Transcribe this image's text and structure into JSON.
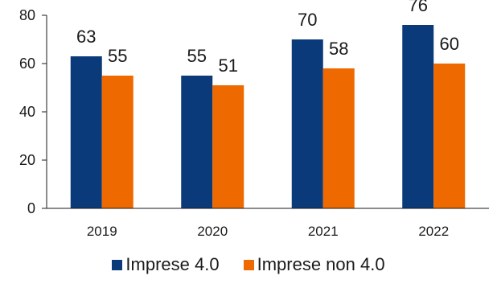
{
  "chart_data": {
    "type": "bar",
    "title": "",
    "xlabel": "",
    "ylabel": "",
    "categories": [
      "2019",
      "2020",
      "2021",
      "2022"
    ],
    "series": [
      {
        "name": "Imprese 4.0",
        "values": [
          63,
          55,
          70,
          76
        ],
        "color": "#0a3a7a"
      },
      {
        "name": "Imprese non 4.0",
        "values": [
          55,
          51,
          58,
          60
        ],
        "color": "#ee6a00"
      }
    ],
    "ylim": [
      0,
      80
    ],
    "yticks": [
      0,
      20,
      40,
      60,
      80
    ],
    "grid": false,
    "legend": "bottom",
    "data_labels": true
  }
}
